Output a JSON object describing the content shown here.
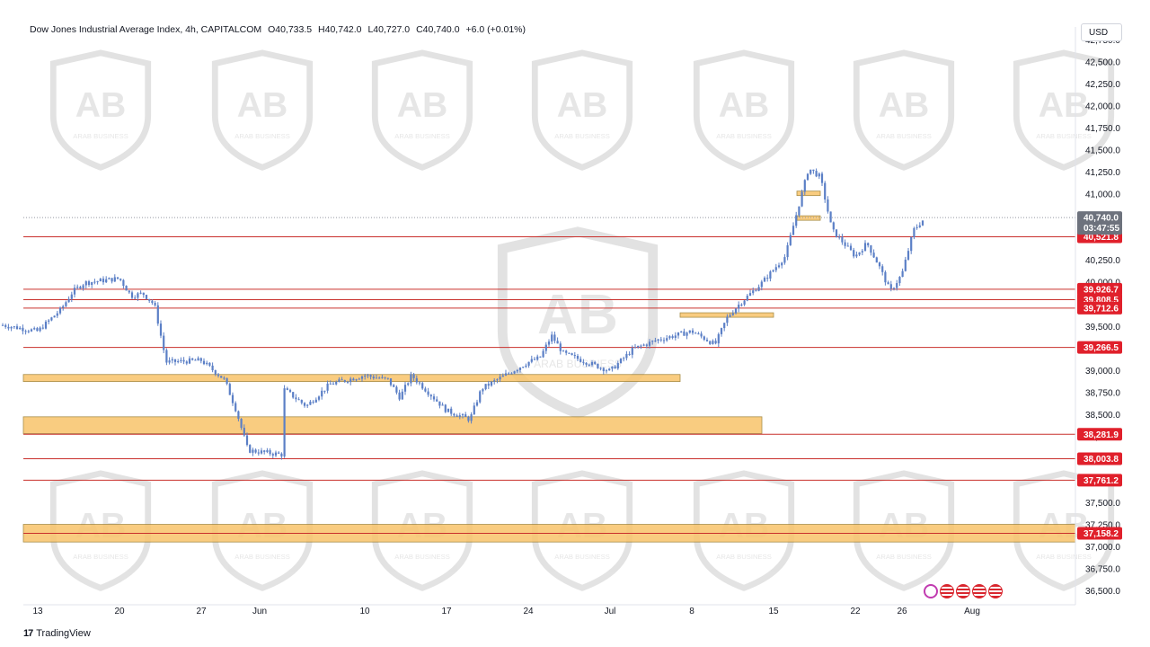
{
  "header": {
    "symbol": "Dow Jones Industrial Average Index, 4h, CAPITALCOM",
    "open": "O40,733.5",
    "high": "H40,742.0",
    "low": "L40,727.0",
    "close": "C40,740.0",
    "change": "+6.0 (+0.01%)"
  },
  "currency": "USD",
  "brand": {
    "logo": "17",
    "name": "TradingView"
  },
  "watermark": {
    "text": "ARAB BUSINESS"
  },
  "price_tag": {
    "value": "40,740.0",
    "countdown": "03:47:55"
  },
  "colors": {
    "candle": "#5b7fc6",
    "level_line": "#c9302c",
    "zone_fill": "#f9c46b",
    "tag_red": "#e0202b",
    "tag_gray": "#6d727d"
  },
  "chart_data": {
    "type": "candlestick",
    "y_ticks": [
      "42,750.0",
      "42,500.0",
      "42,250.0",
      "42,000.0",
      "41,750.0",
      "41,500.0",
      "41,250.0",
      "41,000.0",
      "40,750.0",
      "40,500.0",
      "40,250.0",
      "40,000.0",
      "39,750.0",
      "39,500.0",
      "39,250.0",
      "39,000.0",
      "38,750.0",
      "38,500.0",
      "38,250.0",
      "38,000.0",
      "37,750.0",
      "37,500.0",
      "37,250.0",
      "37,000.0",
      "36,750.0",
      "36,500.0"
    ],
    "ylim": [
      36450,
      42800
    ],
    "x_ticks": [
      "13",
      "20",
      "27",
      "Jun",
      "10",
      "17",
      "24",
      "Jul",
      "8",
      "15",
      "22",
      "26",
      "Aug"
    ],
    "levels": [
      {
        "value": 40521.8,
        "label": "40,521.8"
      },
      {
        "value": 39926.7,
        "label": "39,926.7"
      },
      {
        "value": 39808.5,
        "label": "39,808.5"
      },
      {
        "value": 39712.6,
        "label": "39,712.6"
      },
      {
        "value": 39266.5,
        "label": "39,266.5"
      },
      {
        "value": 38281.9,
        "label": "38,281.9"
      },
      {
        "value": 38003.8,
        "label": "38,003.8"
      },
      {
        "value": 37761.2,
        "label": "37,761.2"
      },
      {
        "value": 37158.2,
        "label": "37,158.2"
      }
    ],
    "zones": [
      {
        "from": 38880,
        "to": 38960,
        "x_end": "Jul 7"
      },
      {
        "from": 38290,
        "to": 38480,
        "x_end": "Jul 14"
      },
      {
        "from": 37060,
        "to": 37260,
        "x_end": "Aug"
      },
      {
        "from": 41010,
        "to": 41040,
        "x_end": "Jul 19"
      },
      {
        "from": 40730,
        "to": 40760,
        "x_end": "Jul 19"
      },
      {
        "from": 39620,
        "to": 39660,
        "x_end": "Jul 15"
      }
    ],
    "close_path": [
      [
        "May 10",
        39520
      ],
      [
        "May 13",
        39450
      ],
      [
        "May 15",
        39700
      ],
      [
        "May 16",
        39900
      ],
      [
        "May 17",
        40000
      ],
      [
        "May 20",
        40050
      ],
      [
        "May 21",
        39850
      ],
      [
        "May 22",
        39880
      ],
      [
        "May 23",
        39750
      ],
      [
        "May 24",
        39100
      ],
      [
        "May 27",
        39120
      ],
      [
        "May 29",
        38900
      ],
      [
        "May 30",
        38550
      ],
      [
        "May 31",
        38100
      ],
      [
        "Jun 3",
        38050
      ],
      [
        "Jun 3",
        38800
      ],
      [
        "Jun 5",
        38600
      ],
      [
        "Jun 7",
        38850
      ],
      [
        "Jun 10",
        38950
      ],
      [
        "Jun 12",
        38900
      ],
      [
        "Jun 13",
        38700
      ],
      [
        "Jun 14",
        38950
      ],
      [
        "Jun 17",
        38550
      ],
      [
        "Jun 19",
        38450
      ],
      [
        "Jun 20",
        38800
      ],
      [
        "Jun 24",
        39100
      ],
      [
        "Jun 25",
        39150
      ],
      [
        "Jun 26",
        39400
      ],
      [
        "Jun 27",
        39200
      ],
      [
        "Jul 1",
        39000
      ],
      [
        "Jul 3",
        39250
      ],
      [
        "Jul 5",
        39350
      ],
      [
        "Jul 8",
        39450
      ],
      [
        "Jul 10",
        39300
      ],
      [
        "Jul 11",
        39600
      ],
      [
        "Jul 12",
        39750
      ],
      [
        "Jul 14",
        40000
      ],
      [
        "Jul 16",
        40300
      ],
      [
        "Jul 17",
        40800
      ],
      [
        "Jul 18",
        41300
      ],
      [
        "Jul 19",
        41200
      ],
      [
        "Jul 20",
        40600
      ],
      [
        "Jul 22",
        40300
      ],
      [
        "Jul 23",
        40450
      ],
      [
        "Jul 24",
        40200
      ],
      [
        "Jul 25",
        39900
      ],
      [
        "Jul 26",
        40100
      ],
      [
        "Jul 27",
        40600
      ],
      [
        "Jul 28",
        40740
      ]
    ]
  }
}
